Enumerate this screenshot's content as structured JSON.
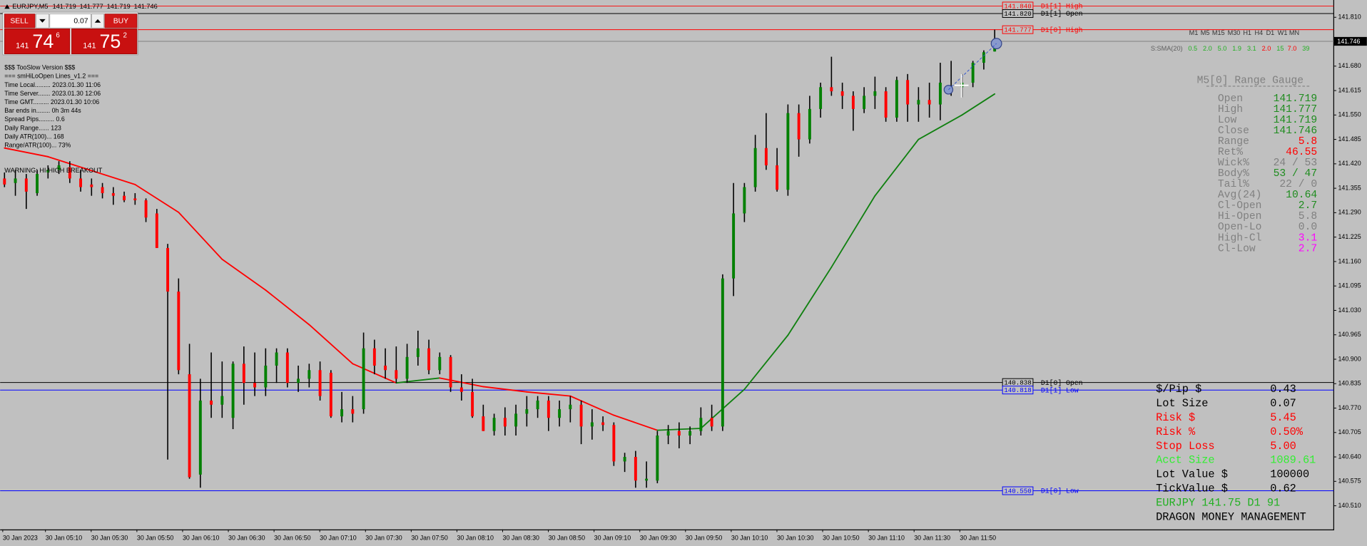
{
  "header": {
    "symbol": "EURJPY,M5"
  },
  "trade_panel": {
    "sell": "SELL",
    "buy": "BUY",
    "lot": "0.07",
    "bid": [
      "141",
      "74",
      "6"
    ],
    "ask": [
      "141",
      "75",
      "2"
    ]
  },
  "info_lines": [
    "$$$ TooSlow Version $$$",
    "=== smHiLoOpen Lines_v1.2 ===",
    "Time Local......... 2023.01.30 11:06",
    "Time Server....... 2023.01.30 12:06",
    "Time GMT......... 2023.01.30 10:06",
    "Bar ends in........ 0h 3m 44s",
    "Spread Pips......... 0.6",
    "Daily Range...... 123",
    "Daily ATR(100)... 168",
    "Range/ATR(100)... 73%"
  ],
  "warning": "WARNING: HI-HIGH BREAKOUT",
  "timeframes": [
    "M1",
    "M5",
    "M15",
    "M30",
    "H1",
    "H4",
    "D1",
    "W1",
    "MN"
  ],
  "strength": {
    "label": "S:SMA(20)",
    "values": [
      "0.5",
      "2.0",
      "5.0",
      "1.9",
      "3.1",
      "2.0",
      "15",
      "7.0",
      "39"
    ],
    "colors": [
      "#22b022",
      "#22b022",
      "#22b022",
      "#22b022",
      "#22b022",
      "#ff0000",
      "#22b022",
      "#ff0000",
      "#22b022"
    ]
  },
  "gauge": {
    "title": "M5[0] Range Gauge",
    "label_color": "#808080",
    "ohlc_color": "#1e8c1e",
    "ohlc_labels": [
      "Open",
      "High",
      "Low",
      "Close"
    ],
    "rows": [
      [
        "Range",
        "5.8",
        "#ff0000"
      ],
      [
        "Ret%",
        "46.55",
        "#ff0000"
      ],
      [
        "Wick%",
        "24 / 53",
        "#808080"
      ],
      [
        "Body%",
        "53 / 47",
        "#1e8c1e"
      ],
      [
        "Tail%",
        "22 / 0",
        "#808080"
      ],
      [
        "Avg(24)",
        "10.64",
        "#1e8c1e"
      ],
      [
        "Cl-Open",
        "2.7",
        "#1e8c1e"
      ],
      [
        "Hi-Open",
        "5.8",
        "#808080"
      ],
      [
        "Open-Lo",
        "0.0",
        "#808080"
      ],
      [
        "High-Cl",
        "3.1",
        "#ff00ff"
      ],
      [
        "Cl-Low",
        "2.7",
        "#ff00ff"
      ]
    ]
  },
  "money": {
    "rows": [
      [
        "$/Pip $",
        "0.43",
        "#000000"
      ],
      [
        "Lot Size",
        "0.07",
        "#000000"
      ],
      [
        "Risk $",
        "5.45",
        "#ff0000"
      ],
      [
        "Risk %",
        "0.50%",
        "#ff0000"
      ],
      [
        "Stop Loss",
        "5.00",
        "#ff0000"
      ],
      [
        "Acct Size",
        "1089.61",
        "#33ee33"
      ],
      [
        "Lot Value $",
        "100000",
        "#000000"
      ],
      [
        "TickValue $",
        "0.62",
        "#000000"
      ]
    ],
    "footer": [
      [
        "EURJPY 141.75 D1 91",
        "#22b022"
      ],
      [
        "DRAGON MONEY MANAGEMENT",
        "#000000"
      ]
    ]
  },
  "chart_data": {
    "type": "candlestick",
    "up_color": "#008000",
    "down_color": "#ff0000",
    "wick_color": "#000000",
    "ylim": [
      140.447,
      141.856
    ],
    "yticks": [
      {
        "value": 141.81,
        "label": "141.810"
      },
      {
        "value": 141.68,
        "label": "141.680"
      },
      141.615,
      {
        "value": 141.55,
        "label": "141.550"
      },
      141.485,
      {
        "value": 141.42,
        "label": "141.420"
      },
      141.355,
      {
        "value": 141.29,
        "label": "141.290"
      },
      141.225,
      {
        "value": 141.16,
        "label": "141.160"
      },
      141.095,
      {
        "value": 141.03,
        "label": "141.030"
      },
      140.965,
      {
        "value": 140.9,
        "label": "140.900"
      },
      140.835,
      {
        "value": 140.77,
        "label": "140.770"
      },
      140.705,
      {
        "value": 140.64,
        "label": "140.640"
      },
      140.575,
      {
        "value": 140.51,
        "label": "140.510"
      }
    ],
    "time_labels": [
      "30 Jan 2023",
      "30 Jan 05:10",
      "30 Jan 05:30",
      "30 Jan 05:50",
      "30 Jan 06:10",
      "30 Jan 06:30",
      "30 Jan 06:50",
      "30 Jan 07:10",
      "30 Jan 07:30",
      "30 Jan 07:50",
      "30 Jan 08:10",
      "30 Jan 08:30",
      "30 Jan 08:50",
      "30 Jan 09:10",
      "30 Jan 09:30",
      "30 Jan 09:50",
      "30 Jan 10:10",
      "30 Jan 10:30",
      "30 Jan 10:50",
      "30 Jan 11:10",
      "30 Jan 11:30",
      "30 Jan 11:50"
    ],
    "bars": [
      [
        141.381,
        141.397,
        141.358,
        141.365
      ],
      [
        141.369,
        141.404,
        141.335,
        141.381
      ],
      [
        141.381,
        141.393,
        141.3,
        141.346
      ],
      [
        141.342,
        141.404,
        141.335,
        141.393
      ],
      [
        141.397,
        141.416,
        141.381,
        141.404
      ],
      [
        141.404,
        141.427,
        141.393,
        141.416
      ],
      [
        141.411,
        141.427,
        141.369,
        141.381
      ],
      [
        141.381,
        141.404,
        141.346,
        141.358
      ],
      [
        141.365,
        141.381,
        141.335,
        141.358
      ],
      [
        141.358,
        141.369,
        141.328,
        141.342
      ],
      [
        141.342,
        141.358,
        141.311,
        141.335
      ],
      [
        141.335,
        141.346,
        141.318,
        141.323
      ],
      [
        141.328,
        141.342,
        141.311,
        141.323
      ],
      [
        141.323,
        141.328,
        141.265,
        141.277
      ],
      [
        141.288,
        141.3,
        141.196,
        141.196
      ],
      [
        141.196,
        141.207,
        140.633,
        141.08
      ],
      [
        141.08,
        141.115,
        140.86,
        140.871
      ],
      [
        140.86,
        140.941,
        140.582,
        140.586
      ],
      [
        140.593,
        140.848,
        140.558,
        140.79
      ],
      [
        140.79,
        140.918,
        140.744,
        140.779
      ],
      [
        140.779,
        140.894,
        140.744,
        140.802
      ],
      [
        140.744,
        140.894,
        140.714,
        140.888
      ],
      [
        140.888,
        140.934,
        140.779,
        140.837
      ],
      [
        140.837,
        140.918,
        140.802,
        140.825
      ],
      [
        140.825,
        140.929,
        140.802,
        140.883
      ],
      [
        140.883,
        140.929,
        140.837,
        140.918
      ],
      [
        140.918,
        140.929,
        140.825,
        140.837
      ],
      [
        140.837,
        140.883,
        140.813,
        140.848
      ],
      [
        140.848,
        140.888,
        140.825,
        140.871
      ],
      [
        140.871,
        140.894,
        140.79,
        140.802
      ],
      [
        140.864,
        140.871,
        140.744,
        140.748
      ],
      [
        140.748,
        140.813,
        140.732,
        140.767
      ],
      [
        140.767,
        140.802,
        140.732,
        140.755
      ],
      [
        140.767,
        140.971,
        140.755,
        140.929
      ],
      [
        140.929,
        140.952,
        140.86,
        140.883
      ],
      [
        140.883,
        140.929,
        140.848,
        140.871
      ],
      [
        140.871,
        140.934,
        140.837,
        140.848
      ],
      [
        140.848,
        140.941,
        140.837,
        140.906
      ],
      [
        140.906,
        140.976,
        140.883,
        140.929
      ],
      [
        140.929,
        140.952,
        140.86,
        140.871
      ],
      [
        140.871,
        140.918,
        140.86,
        140.906
      ],
      [
        140.906,
        140.911,
        140.813,
        140.825
      ],
      [
        140.825,
        140.86,
        140.79,
        140.813
      ],
      [
        140.813,
        140.848,
        140.744,
        140.748
      ],
      [
        140.748,
        140.779,
        140.709,
        140.709
      ],
      [
        140.709,
        140.755,
        140.697,
        140.744
      ],
      [
        140.744,
        140.772,
        140.697,
        140.721
      ],
      [
        140.721,
        140.779,
        140.697,
        140.755
      ],
      [
        140.755,
        140.802,
        140.721,
        140.767
      ],
      [
        140.767,
        140.802,
        140.744,
        140.79
      ],
      [
        140.79,
        140.802,
        140.709,
        140.744
      ],
      [
        140.744,
        140.79,
        140.721,
        140.767
      ],
      [
        140.767,
        140.802,
        140.732,
        140.779
      ],
      [
        140.779,
        140.79,
        140.674,
        140.721
      ],
      [
        140.721,
        140.767,
        140.686,
        140.732
      ],
      [
        140.732,
        140.748,
        140.709,
        140.725
      ],
      [
        140.725,
        140.732,
        140.616,
        140.628
      ],
      [
        140.628,
        140.651,
        140.6,
        140.64
      ],
      [
        140.64,
        140.656,
        140.558,
        140.577
      ],
      [
        140.577,
        140.628,
        140.558,
        140.582
      ],
      [
        140.577,
        140.709,
        140.57,
        140.697
      ],
      [
        140.697,
        140.725,
        140.674,
        140.709
      ],
      [
        140.709,
        140.732,
        140.663,
        140.697
      ],
      [
        140.697,
        140.721,
        140.674,
        140.709
      ],
      [
        140.709,
        140.772,
        140.697,
        140.744
      ],
      [
        140.744,
        140.779,
        140.709,
        140.721
      ],
      [
        140.721,
        141.126,
        140.709,
        141.115
      ],
      [
        141.115,
        141.369,
        141.068,
        141.288
      ],
      [
        141.288,
        141.369,
        141.265,
        141.358
      ],
      [
        141.358,
        141.497,
        141.346,
        141.462
      ],
      [
        141.462,
        141.555,
        141.404,
        141.416
      ],
      [
        141.416,
        141.462,
        141.346,
        141.351
      ],
      [
        141.351,
        141.578,
        141.335,
        141.555
      ],
      [
        141.555,
        141.578,
        141.439,
        141.485
      ],
      [
        141.485,
        141.601,
        141.474,
        141.566
      ],
      [
        141.566,
        141.636,
        141.543,
        141.624
      ],
      [
        141.624,
        141.705,
        141.601,
        141.613
      ],
      [
        141.613,
        141.636,
        141.566,
        141.601
      ],
      [
        141.601,
        141.613,
        141.508,
        141.566
      ],
      [
        141.566,
        141.624,
        141.555,
        141.601
      ],
      [
        141.601,
        141.652,
        141.566,
        141.613
      ],
      [
        141.613,
        141.624,
        141.532,
        141.543
      ],
      [
        141.543,
        141.652,
        141.532,
        141.643
      ],
      [
        141.643,
        141.659,
        141.532,
        141.578
      ],
      [
        141.578,
        141.624,
        141.532,
        141.59
      ],
      [
        141.59,
        141.636,
        141.543,
        141.578
      ],
      [
        141.578,
        141.689,
        141.536,
        141.636
      ],
      [
        141.617,
        141.694,
        141.601,
        141.624
      ],
      [
        141.624,
        141.659,
        141.597,
        141.636
      ],
      [
        141.636,
        141.694,
        141.624,
        141.689
      ],
      [
        141.689,
        141.722,
        141.671,
        141.717
      ],
      [
        141.719,
        141.777,
        141.719,
        141.746
      ]
    ],
    "sma": {
      "x": [
        0,
        4,
        8,
        12,
        16,
        20,
        24,
        28,
        32,
        36,
        40,
        44,
        48,
        52,
        56,
        60,
        64,
        68,
        72,
        76,
        80,
        84,
        88,
        91
      ],
      "values": [
        141.462,
        141.439,
        141.402,
        141.365,
        141.291,
        141.166,
        141.084,
        140.992,
        140.888,
        140.837,
        140.85,
        140.827,
        140.813,
        140.802,
        140.751,
        140.711,
        140.716,
        140.82,
        140.964,
        141.145,
        141.335,
        141.485,
        141.55,
        141.606
      ],
      "up_color": "#108010",
      "down_color": "#ff0000"
    },
    "levels": {
      "values": [
        141.84,
        141.82,
        141.777,
        140.838,
        140.818,
        140.55
      ],
      "value_labels": [
        "141.840",
        "141.820",
        "141.777",
        "140.838",
        "140.818",
        "140.550"
      ],
      "names": [
        "D1[1] High",
        "D1[1] Open",
        "D1[0] High",
        "D1[0] Open",
        "D1[1] Low",
        "D1[0] Low"
      ],
      "colors": [
        "#ff0000",
        "#000000",
        "#ff0000",
        "#000000",
        "#0000ff",
        "#0000ff"
      ]
    },
    "price_line_color": "#808080",
    "background": "#c0c0c0"
  }
}
